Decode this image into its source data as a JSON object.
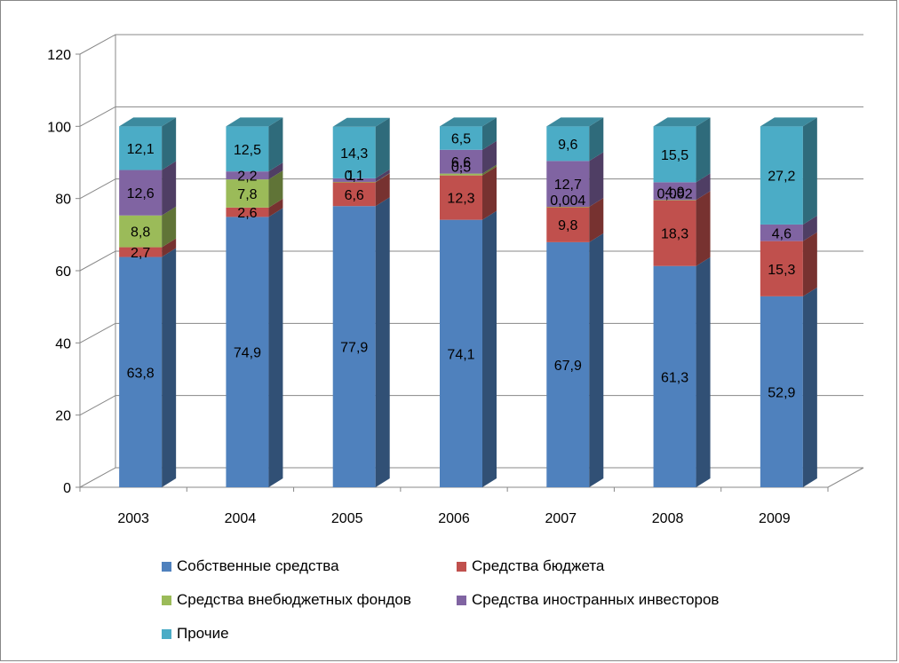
{
  "chart_data": {
    "type": "bar",
    "stacked": true,
    "three_d": true,
    "title": "",
    "xlabel": "",
    "ylabel": "",
    "ylim": [
      0,
      120
    ],
    "yticks": [
      "0",
      "20",
      "40",
      "60",
      "80",
      "100",
      "120"
    ],
    "grid": true,
    "legend_position": "bottom",
    "categories": [
      "2003",
      "2004",
      "2005",
      "2006",
      "2007",
      "2008",
      "2009"
    ],
    "series": [
      {
        "name": "Собственные средства",
        "color": "#4F81BD",
        "values": [
          63.8,
          74.9,
          77.9,
          74.1,
          67.9,
          61.3,
          52.9
        ],
        "labels": [
          "63,8",
          "74,9",
          "77,9",
          "74,1",
          "67,9",
          "61,3",
          "52,9"
        ]
      },
      {
        "name": "Средства бюджета",
        "color": "#C0504D",
        "values": [
          2.7,
          2.6,
          6.6,
          12.3,
          9.8,
          18.3,
          15.3
        ],
        "labels": [
          "2,7",
          "2,6",
          "6,6",
          "12,3",
          "9,8",
          "18,3",
          "15,3"
        ]
      },
      {
        "name": "Средства внебюджетных фондов",
        "color": "#9BBB59",
        "values": [
          8.8,
          7.8,
          0.1,
          0.5,
          0.004,
          0.002,
          0
        ],
        "labels": [
          "8,8",
          "7,8",
          "0,1",
          "0,5",
          "0,004",
          "0,002",
          ""
        ]
      },
      {
        "name": "Средства иностранных инвесторов",
        "color": "#8064A2",
        "values": [
          12.6,
          2.2,
          1,
          6.6,
          12.7,
          4.9,
          4.6
        ],
        "labels": [
          "12,6",
          "2,2",
          "1",
          "6,6",
          "12,7",
          "4,9",
          "4,6"
        ]
      },
      {
        "name": "Прочие",
        "color": "#4BACC6",
        "values": [
          12.1,
          12.5,
          14.3,
          6.5,
          9.6,
          15.5,
          27.2
        ],
        "labels": [
          "12,1",
          "12,5",
          "14,3",
          "6,5",
          "9,6",
          "15,5",
          "27,2"
        ]
      }
    ]
  }
}
